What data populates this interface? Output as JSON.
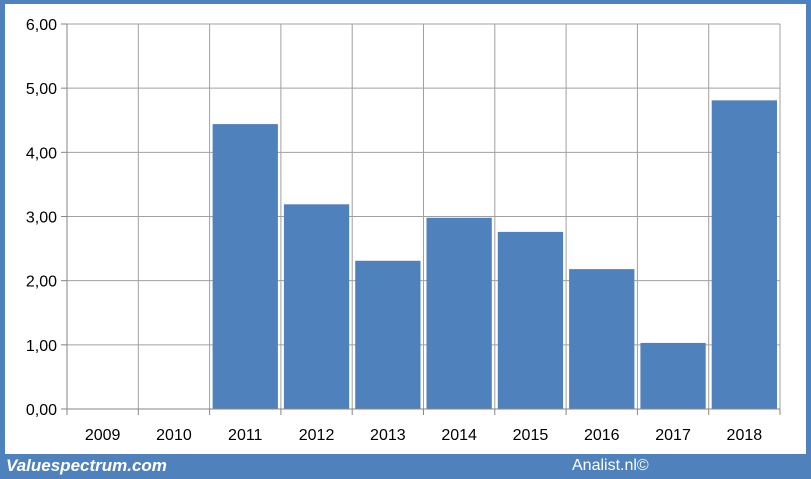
{
  "footer": {
    "site": "Valuespectrum.com",
    "credit": "Analist.nl©"
  },
  "colors": {
    "bar": "#4f81bd",
    "frame": "#4f81bd",
    "grid": "#a0a0a0"
  },
  "chart_data": {
    "type": "bar",
    "categories": [
      "2009",
      "2010",
      "2011",
      "2012",
      "2013",
      "2014",
      "2015",
      "2016",
      "2017",
      "2018"
    ],
    "values": [
      0,
      0,
      4.44,
      3.19,
      2.31,
      2.98,
      2.76,
      2.18,
      1.03,
      4.81
    ],
    "ylim": [
      0,
      6
    ],
    "yticks": [
      "0,00",
      "1,00",
      "2,00",
      "3,00",
      "4,00",
      "5,00",
      "6,00"
    ],
    "grid": true,
    "legend": "none"
  }
}
